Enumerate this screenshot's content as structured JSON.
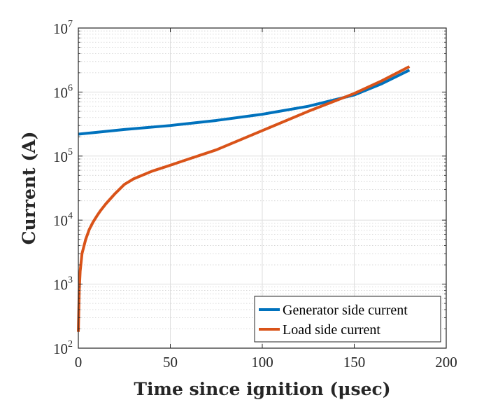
{
  "chart_data": {
    "type": "line",
    "xlabel": "Time since ignition (μsec)",
    "ylabel": "Current (A)",
    "xlim": [
      0,
      200
    ],
    "ylim": [
      100,
      10000000
    ],
    "yscale": "log",
    "grid": true,
    "minor_grid": true,
    "legend_position": "bottom-right",
    "x_ticks": [
      "0",
      "50",
      "100",
      "150",
      "200"
    ],
    "y_ticks": [
      {
        "base": "10",
        "exp": "2"
      },
      {
        "base": "10",
        "exp": "3"
      },
      {
        "base": "10",
        "exp": "4"
      },
      {
        "base": "10",
        "exp": "5"
      },
      {
        "base": "10",
        "exp": "6"
      },
      {
        "base": "10",
        "exp": "7"
      }
    ],
    "series": [
      {
        "name": "Generator side current",
        "color": "#0072BD",
        "x": [
          0,
          10,
          25,
          50,
          75,
          100,
          125,
          150,
          165,
          180
        ],
        "y": [
          220000,
          235000,
          260000,
          300000,
          360000,
          450000,
          600000,
          900000,
          1350000,
          2200000
        ]
      },
      {
        "name": "Load side current",
        "color": "#D95319",
        "x": [
          0,
          0.5,
          1,
          2,
          4,
          6,
          8,
          10,
          12,
          15,
          20,
          25,
          30,
          40,
          50,
          60,
          75,
          100,
          125,
          150,
          165,
          180
        ],
        "y": [
          180,
          800,
          1600,
          3000,
          5000,
          7200,
          9300,
          11500,
          14000,
          18000,
          26000,
          36000,
          44000,
          58000,
          72000,
          90000,
          125000,
          250000,
          500000,
          950000,
          1500000,
          2500000
        ]
      }
    ]
  }
}
